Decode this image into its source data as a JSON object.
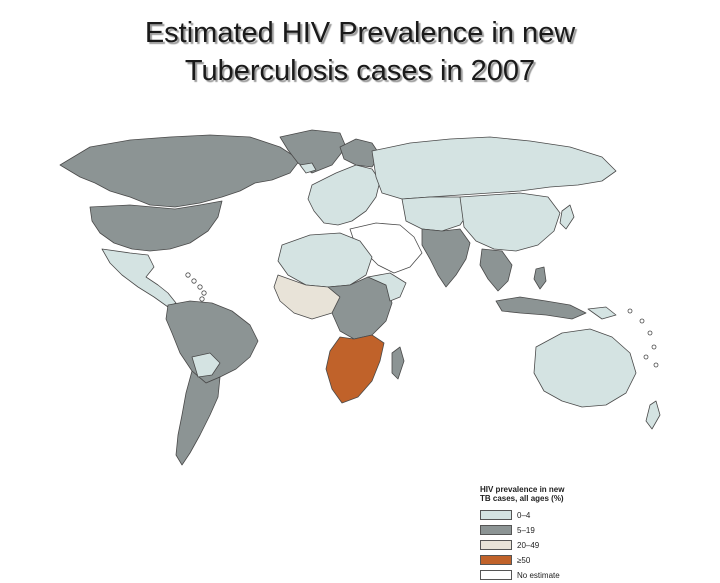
{
  "slide": {
    "title_line1": "Estimated HIV Prevalence in new",
    "title_line2": "Tuberculosis cases in 2007"
  },
  "legend": {
    "title_line1": "HIV prevalence in new",
    "title_line2": "TB cases, all ages (%)",
    "items": [
      {
        "label": "0–4",
        "color": "#d4e3e2"
      },
      {
        "label": "5–19",
        "color": "#8c9494"
      },
      {
        "label": "20–49",
        "color": "#e8e3d8"
      },
      {
        "label": "≥50",
        "color": "#c0622a"
      },
      {
        "label": "No estimate",
        "color": "#ffffff"
      }
    ]
  },
  "map_colors": {
    "low": "#d4e3e2",
    "mid": "#8c9494",
    "high": "#e8e3d8",
    "very_high": "#c0622a",
    "none": "#ffffff",
    "border": "#4a4a4a"
  }
}
